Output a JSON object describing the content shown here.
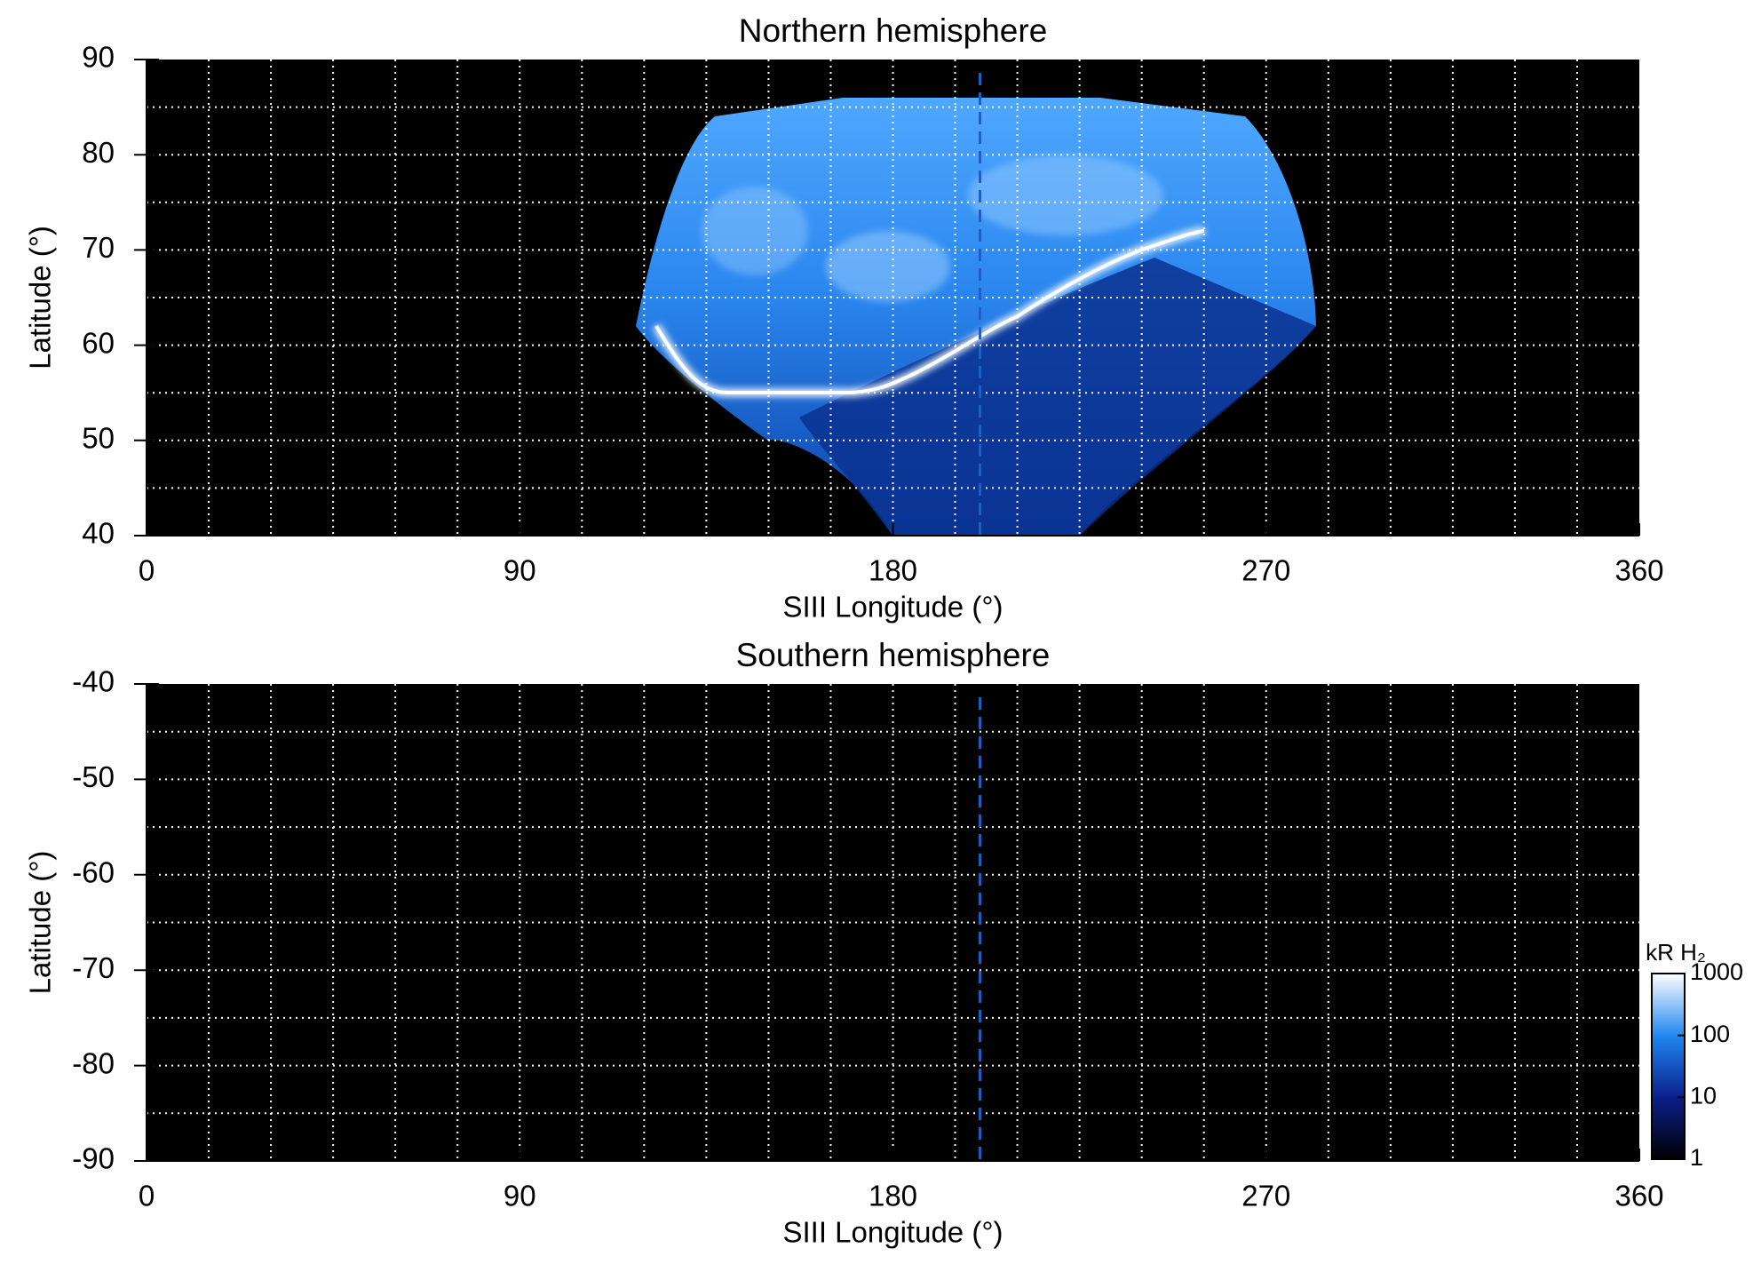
{
  "chart_data": [
    {
      "type": "heatmap",
      "title": "Northern hemisphere",
      "xlabel": "SIII Longitude (°)",
      "ylabel": "Latitude (°)",
      "xlim": [
        0,
        360
      ],
      "xticks": [
        0,
        90,
        180,
        270,
        360
      ],
      "xgrid": [
        15,
        30,
        45,
        60,
        75,
        90,
        105,
        120,
        135,
        150,
        165,
        180,
        195,
        210,
        225,
        240,
        255,
        270,
        285,
        300,
        315,
        330,
        345
      ],
      "ylim": [
        40,
        90
      ],
      "yticks": [
        40,
        50,
        60,
        70,
        80,
        90
      ],
      "ygrid": [
        45,
        50,
        55,
        60,
        65,
        70,
        75,
        80,
        85
      ],
      "marker_x": 201,
      "marker_color": "#1f5fc4"
    },
    {
      "type": "heatmap",
      "title": "Southern hemisphere",
      "xlabel": "SIII Longitude (°)",
      "ylabel": "Latitude (°)",
      "xlim": [
        0,
        360
      ],
      "xticks": [
        0,
        90,
        180,
        270,
        360
      ],
      "xgrid": [
        15,
        30,
        45,
        60,
        75,
        90,
        105,
        120,
        135,
        150,
        165,
        180,
        195,
        210,
        225,
        240,
        255,
        270,
        285,
        300,
        315,
        330,
        345
      ],
      "ylim": [
        -90,
        -40
      ],
      "yticks": [
        -90,
        -80,
        -70,
        -60,
        -50,
        -40
      ],
      "ygrid": [
        -85,
        -80,
        -75,
        -70,
        -65,
        -60,
        -55,
        -50,
        -45
      ],
      "marker_x": 201,
      "marker_color": "#1f5fc4",
      "colorbar": {
        "label": "kR H₂",
        "lim": [
          1,
          1000
        ],
        "ticks": [
          1,
          10,
          100,
          1000
        ],
        "log": true
      }
    }
  ]
}
